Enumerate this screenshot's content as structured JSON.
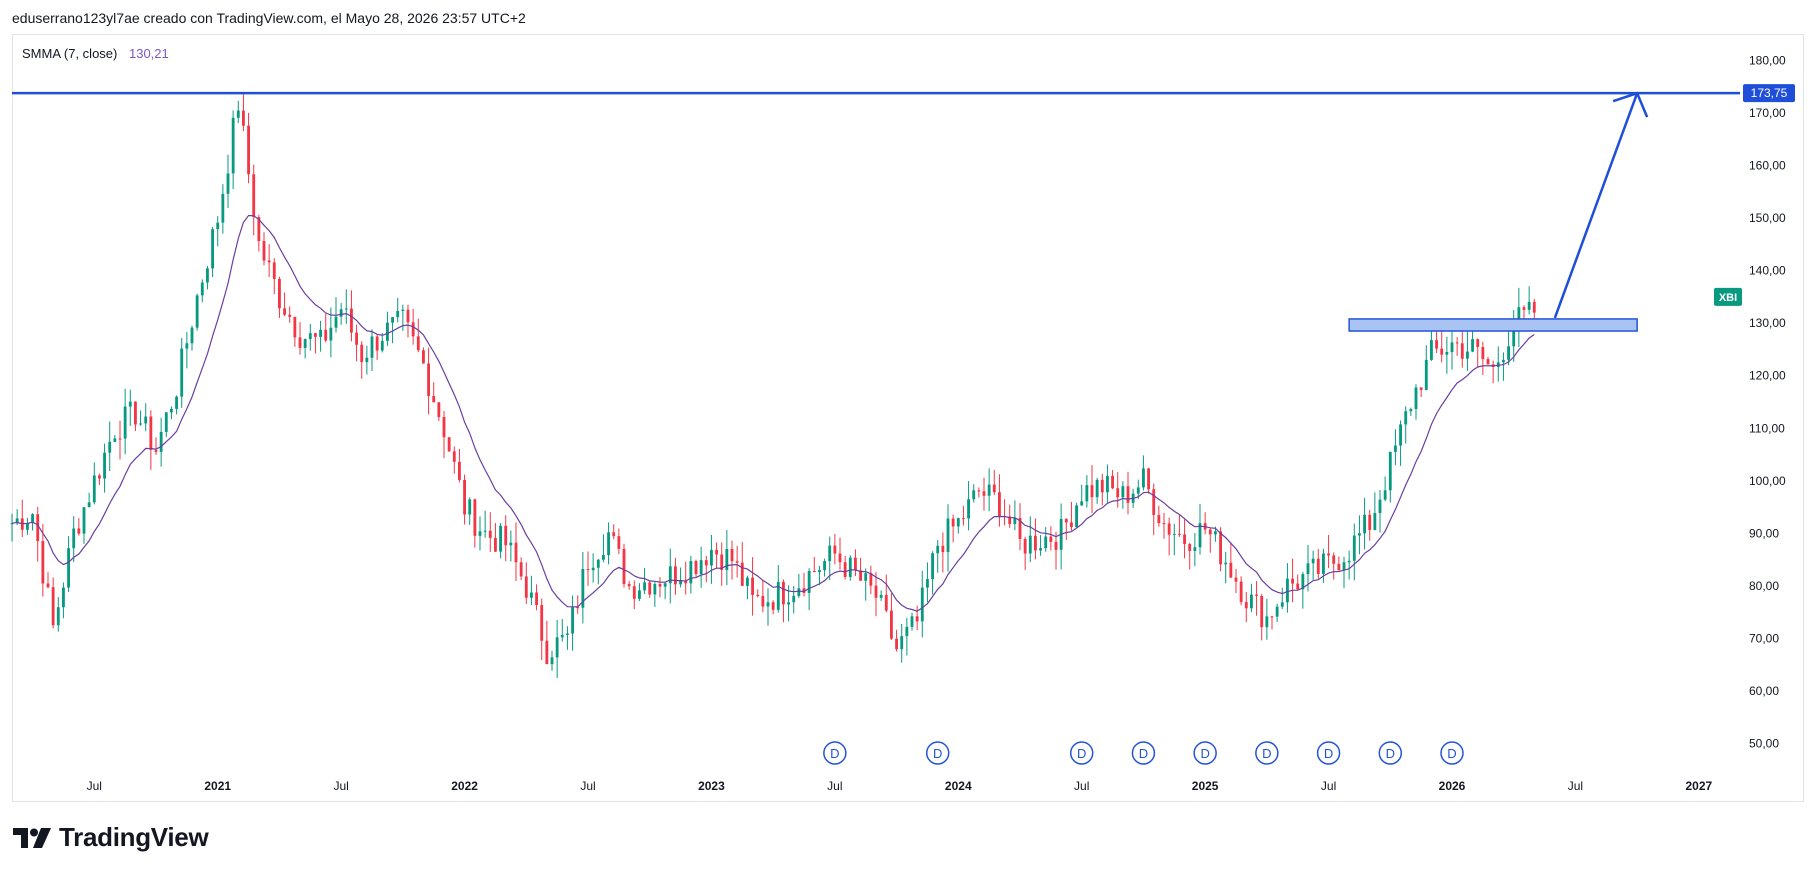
{
  "header": {
    "caption": "eduserrano123yl7ae creado con TradingView.com, el Mayo 28, 2026 23:57 UTC+2"
  },
  "legend": {
    "indicator": "SMMA (7, close)",
    "value": "130,21"
  },
  "brand": {
    "name": "TradingView"
  },
  "colors": {
    "up": "#089981",
    "down": "#f23645",
    "smma": "#6a3fa0",
    "resistance": "#1f4fd8",
    "zone_fill": "#a9c3f2",
    "zone_stroke": "#2454d6",
    "symbol_badge": "#089981"
  },
  "icons": {
    "brand_logo": "tradingview-logo-icon",
    "dividend": "dividend-marker-icon"
  },
  "chart_data": {
    "type": "candlestick",
    "ylim": [
      45,
      185
    ],
    "y_ticks": [
      "180,00",
      "170,00",
      "160,00",
      "150,00",
      "140,00",
      "130,00",
      "120,00",
      "110,00",
      "100,00",
      "90,00",
      "80,00",
      "70,00",
      "60,00",
      "50,00"
    ],
    "x_ticks": [
      {
        "label": "Jul",
        "year": false
      },
      {
        "label": "2021",
        "year": true
      },
      {
        "label": "Jul",
        "year": false
      },
      {
        "label": "2022",
        "year": true
      },
      {
        "label": "Jul",
        "year": false
      },
      {
        "label": "2023",
        "year": true
      },
      {
        "label": "Jul",
        "year": false
      },
      {
        "label": "2024",
        "year": true
      },
      {
        "label": "Jul",
        "year": false
      },
      {
        "label": "2025",
        "year": true
      },
      {
        "label": "Jul",
        "year": false
      },
      {
        "label": "2026",
        "year": true
      },
      {
        "label": "Jul",
        "year": false
      },
      {
        "label": "2027",
        "year": true
      }
    ],
    "x_range": [
      "2020-03",
      "2027-03"
    ],
    "close_path": [
      [
        "2020-03",
        92
      ],
      [
        "2020-04",
        94
      ],
      [
        "2020-05",
        72
      ],
      [
        "2020-06",
        90
      ],
      [
        "2020-07",
        100
      ],
      [
        "2020-08",
        110
      ],
      [
        "2020-09",
        113
      ],
      [
        "2020-10",
        106
      ],
      [
        "2020-11",
        118
      ],
      [
        "2020-12",
        135
      ],
      [
        "2021-01",
        150
      ],
      [
        "2021-02",
        172
      ],
      [
        "2021-03",
        145
      ],
      [
        "2021-04",
        135
      ],
      [
        "2021-05",
        128
      ],
      [
        "2021-06",
        126
      ],
      [
        "2021-07",
        133
      ],
      [
        "2021-08",
        124
      ],
      [
        "2021-09",
        128
      ],
      [
        "2021-10",
        130
      ],
      [
        "2021-11",
        122
      ],
      [
        "2021-12",
        110
      ],
      [
        "2022-01",
        95
      ],
      [
        "2022-02",
        90
      ],
      [
        "2022-03",
        88
      ],
      [
        "2022-04",
        80
      ],
      [
        "2022-05",
        68
      ],
      [
        "2022-06",
        70
      ],
      [
        "2022-07",
        85
      ],
      [
        "2022-08",
        90
      ],
      [
        "2022-09",
        80
      ],
      [
        "2022-10",
        81
      ],
      [
        "2022-11",
        82
      ],
      [
        "2022-12",
        84
      ],
      [
        "2023-01",
        87
      ],
      [
        "2023-02",
        85
      ],
      [
        "2023-03",
        77
      ],
      [
        "2023-04",
        78
      ],
      [
        "2023-05",
        80
      ],
      [
        "2023-06",
        83
      ],
      [
        "2023-07",
        86
      ],
      [
        "2023-08",
        82
      ],
      [
        "2023-09",
        78
      ],
      [
        "2023-10",
        68
      ],
      [
        "2023-11",
        73
      ],
      [
        "2023-12",
        88
      ],
      [
        "2024-01",
        92
      ],
      [
        "2024-02",
        98
      ],
      [
        "2024-03",
        96
      ],
      [
        "2024-04",
        88
      ],
      [
        "2024-05",
        89
      ],
      [
        "2024-06",
        90
      ],
      [
        "2024-07",
        98
      ],
      [
        "2024-08",
        99
      ],
      [
        "2024-09",
        97
      ],
      [
        "2024-10",
        100
      ],
      [
        "2024-11",
        92
      ],
      [
        "2024-12",
        89
      ],
      [
        "2025-01",
        91
      ],
      [
        "2025-02",
        85
      ],
      [
        "2025-03",
        78
      ],
      [
        "2025-04",
        74
      ],
      [
        "2025-05",
        80
      ],
      [
        "2025-06",
        82
      ],
      [
        "2025-07",
        84
      ],
      [
        "2025-08",
        87
      ],
      [
        "2025-09",
        92
      ],
      [
        "2025-10",
        103
      ],
      [
        "2025-11",
        115
      ],
      [
        "2025-12",
        124
      ],
      [
        "2026-01",
        126
      ],
      [
        "2026-02",
        125
      ],
      [
        "2026-03",
        121
      ],
      [
        "2026-04",
        130
      ],
      [
        "2026-05",
        132
      ]
    ],
    "overlays": {
      "resistance_level": 173.75,
      "resistance_label": "173,75",
      "zone": {
        "from": "2025-08",
        "to": "2026-10",
        "low": 128.5,
        "high": 130.8
      },
      "arrow": {
        "from": [
          "2026-06",
          131
        ],
        "to": [
          "2026-10",
          173.75
        ]
      },
      "symbol_badge": {
        "label": "XBI",
        "price": 135
      },
      "dividends": [
        "2023-07",
        "2023-12",
        "2024-07",
        "2024-10",
        "2025-01",
        "2025-04",
        "2025-07",
        "2025-10",
        "2026-01"
      ]
    }
  }
}
